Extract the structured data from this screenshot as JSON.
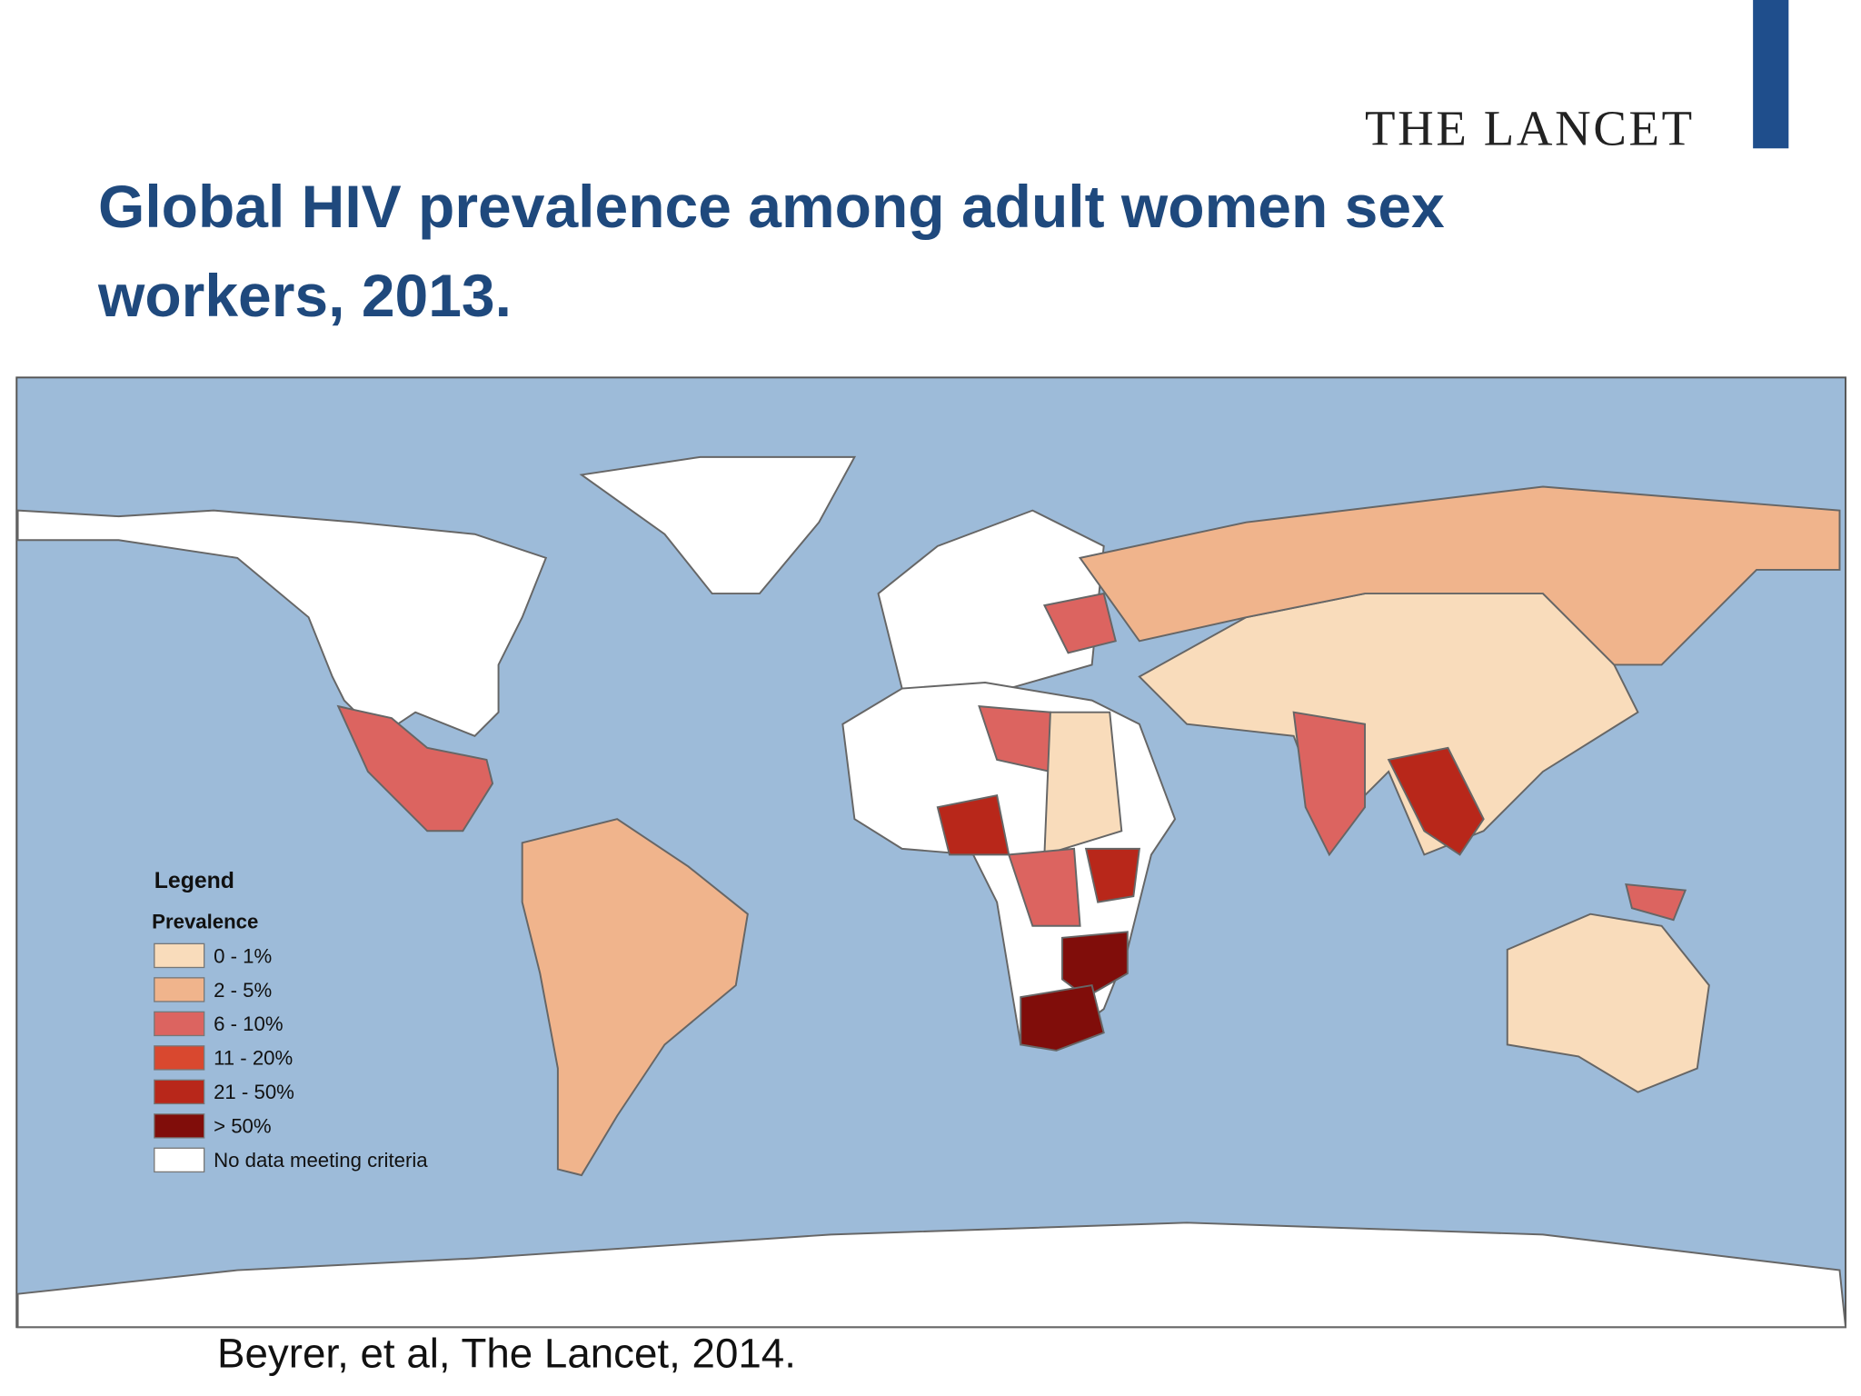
{
  "header": {
    "logo": "THE LANCET",
    "title": "Global HIV prevalence among adult women sex workers, 2013."
  },
  "legend": {
    "title": "Legend",
    "subtitle": "Prevalence",
    "items": [
      {
        "label": "0 - 1%",
        "color": "#f9dcbb"
      },
      {
        "label": "2 - 5%",
        "color": "#f0b48c"
      },
      {
        "label": "6 - 10%",
        "color": "#dc6460"
      },
      {
        "label": "11 - 20%",
        "color": "#d9482f"
      },
      {
        "label": "21 - 50%",
        "color": "#b8271a"
      },
      {
        "label": "> 50%",
        "color": "#800d0a"
      },
      {
        "label": "No data meeting criteria",
        "color": "#ffffff"
      }
    ]
  },
  "citation": "Beyrer, et al, The Lancet, 2014."
}
